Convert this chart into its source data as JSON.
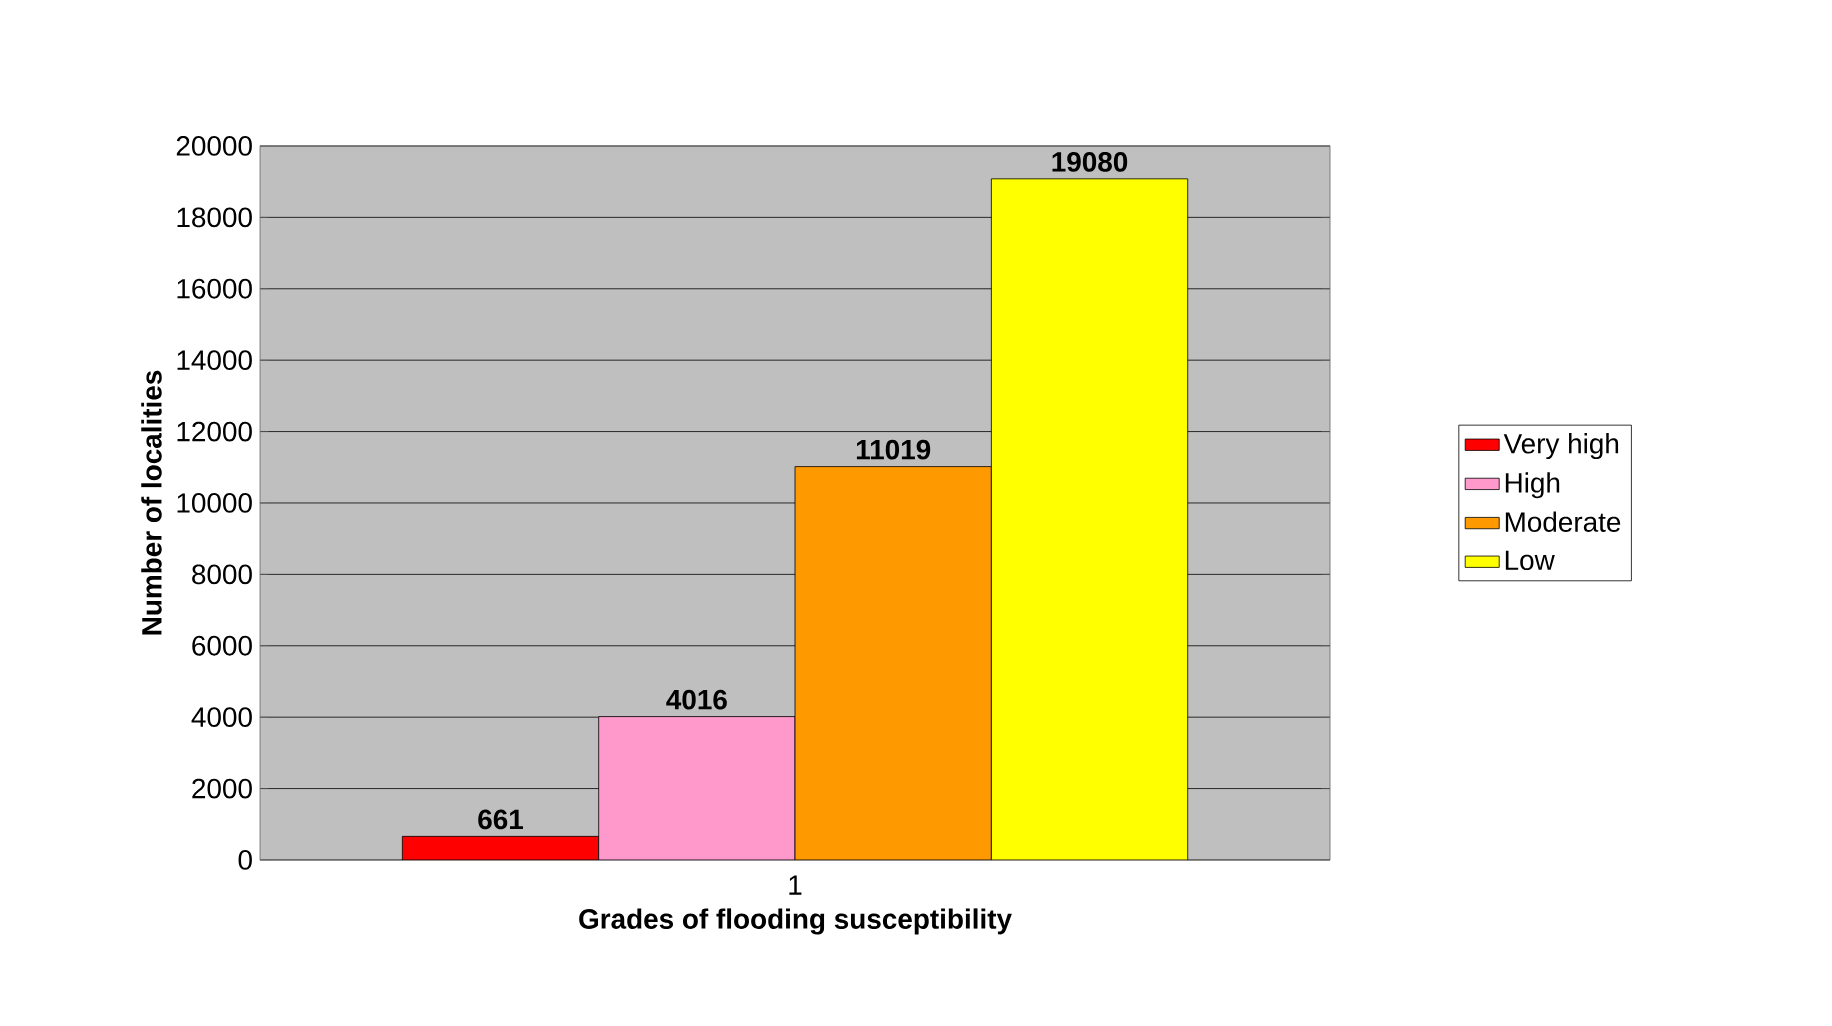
{
  "chart_data": {
    "type": "bar",
    "xlabel": "Grades of flooding susceptibility",
    "ylabel": "Number of localities",
    "categories": [
      "1"
    ],
    "series": [
      {
        "name": "Very high",
        "color": "#ff0000",
        "values": [
          661
        ]
      },
      {
        "name": "High",
        "color": "#ff99cc",
        "values": [
          4016
        ]
      },
      {
        "name": "Moderate",
        "color": "#ff9900",
        "values": [
          11019
        ]
      },
      {
        "name": "Low",
        "color": "#ffff00",
        "values": [
          19080
        ]
      }
    ],
    "ylim": [
      0,
      20000
    ],
    "yticks": [
      0,
      2000,
      4000,
      6000,
      8000,
      10000,
      12000,
      14000,
      16000,
      18000,
      20000
    ],
    "grid": "y",
    "legend": "right",
    "data_labels": true
  }
}
